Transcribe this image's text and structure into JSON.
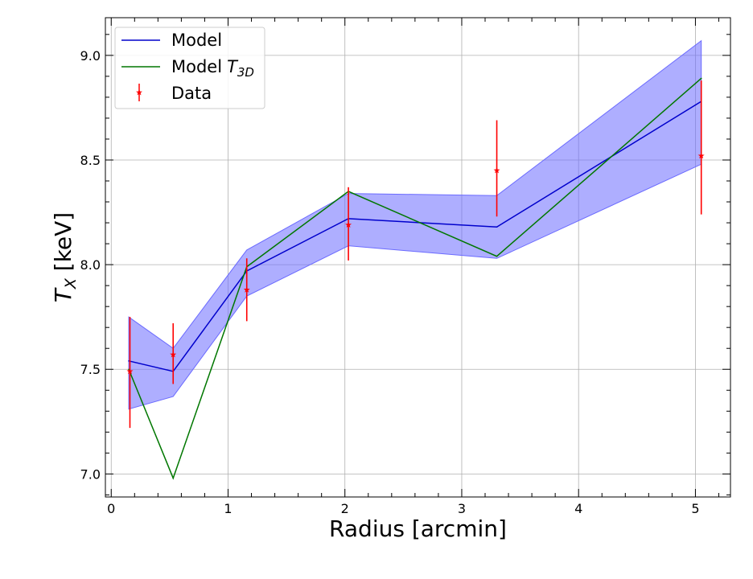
{
  "chart_data": {
    "type": "line",
    "xlabel": "Radius [arcmin]",
    "ylabel_main": "T",
    "ylabel_sub": "X",
    "ylabel_unit": " [keV]",
    "xlim": [
      -0.05,
      5.3
    ],
    "ylim": [
      6.89,
      9.18
    ],
    "x_ticks": [
      0,
      1,
      2,
      3,
      4,
      5
    ],
    "y_ticks": [
      7.0,
      7.5,
      8.0,
      8.5,
      9.0
    ],
    "x_tick_labels": [
      "0",
      "1",
      "2",
      "3",
      "4",
      "5"
    ],
    "y_tick_labels": [
      "7.0",
      "7.5",
      "8.0",
      "8.5",
      "9.0"
    ],
    "grid": true,
    "legend_position": "top-left",
    "x": [
      0.15,
      0.53,
      1.16,
      2.03,
      3.3,
      5.05
    ],
    "series": [
      {
        "name": "Model",
        "color": "#0000cc",
        "values": [
          7.54,
          7.49,
          7.97,
          8.22,
          8.18,
          8.78
        ],
        "band_lower": [
          7.31,
          7.37,
          7.85,
          8.09,
          8.03,
          8.48
        ],
        "band_upper": [
          7.75,
          7.6,
          8.07,
          8.34,
          8.33,
          9.07
        ],
        "band_color": "#6b6bff"
      },
      {
        "name": "Model",
        "name_math": "T",
        "name_sub": "3D",
        "color": "#007700",
        "values": [
          7.5,
          6.98,
          7.99,
          8.35,
          8.04,
          8.89
        ]
      },
      {
        "name": "Data",
        "color": "#ff0000",
        "marker": "star",
        "points": [
          {
            "x": 0.16,
            "y": 7.49,
            "lo": 7.22,
            "hi": 7.75
          },
          {
            "x": 0.53,
            "y": 7.57,
            "lo": 7.43,
            "hi": 7.72
          },
          {
            "x": 1.16,
            "y": 7.88,
            "lo": 7.73,
            "hi": 8.03
          },
          {
            "x": 2.03,
            "y": 8.19,
            "lo": 8.02,
            "hi": 8.37
          },
          {
            "x": 3.3,
            "y": 8.45,
            "lo": 8.23,
            "hi": 8.69
          },
          {
            "x": 5.05,
            "y": 8.52,
            "lo": 8.24,
            "hi": 8.88
          }
        ]
      }
    ]
  }
}
